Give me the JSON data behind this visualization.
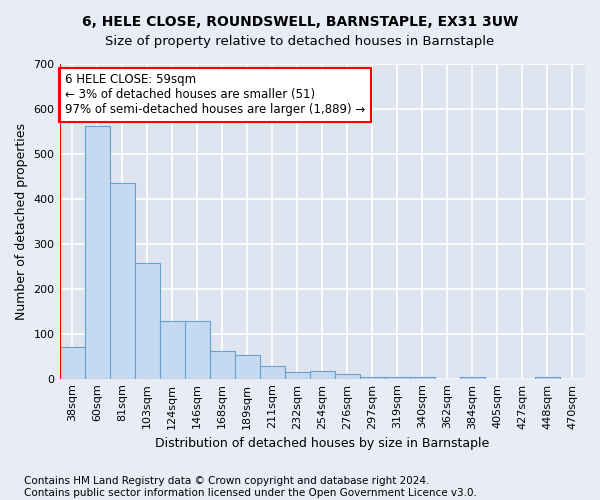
{
  "title": "6, HELE CLOSE, ROUNDSWELL, BARNSTAPLE, EX31 3UW",
  "subtitle": "Size of property relative to detached houses in Barnstaple",
  "xlabel": "Distribution of detached houses by size in Barnstaple",
  "ylabel": "Number of detached properties",
  "categories": [
    "38sqm",
    "60sqm",
    "81sqm",
    "103sqm",
    "124sqm",
    "146sqm",
    "168sqm",
    "189sqm",
    "211sqm",
    "232sqm",
    "254sqm",
    "276sqm",
    "297sqm",
    "319sqm",
    "340sqm",
    "362sqm",
    "384sqm",
    "405sqm",
    "427sqm",
    "448sqm",
    "470sqm"
  ],
  "values": [
    70,
    562,
    435,
    257,
    128,
    128,
    62,
    52,
    28,
    15,
    18,
    11,
    4,
    3,
    3,
    0,
    3,
    0,
    0,
    3,
    0
  ],
  "bar_color": "#c5d9f0",
  "bar_edge_color": "#6aa0cc",
  "vline_x": 0.5,
  "vline_color": "red",
  "annotation_text": "6 HELE CLOSE: 59sqm\n← 3% of detached houses are smaller (51)\n97% of semi-detached houses are larger (1,889) →",
  "annotation_box_color": "white",
  "annotation_box_edge": "red",
  "ylim": [
    0,
    700
  ],
  "yticks": [
    0,
    100,
    200,
    300,
    400,
    500,
    600,
    700
  ],
  "background_color": "#e8edf5",
  "axes_bg_color": "#dde4f0",
  "grid_color": "white",
  "footer": "Contains HM Land Registry data © Crown copyright and database right 2024.\nContains public sector information licensed under the Open Government Licence v3.0.",
  "title_fontsize": 10,
  "xlabel_fontsize": 9,
  "ylabel_fontsize": 9,
  "tick_fontsize": 8,
  "footer_fontsize": 7.5,
  "annot_fontsize": 8.5
}
